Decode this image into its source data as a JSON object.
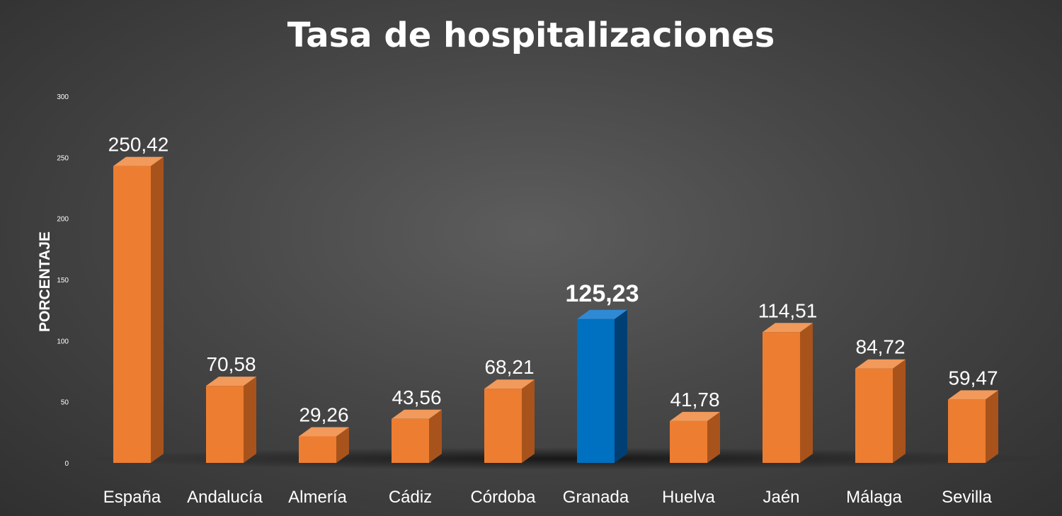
{
  "chart_data": {
    "type": "bar",
    "title": "Tasa de hospitalizaciones",
    "ylabel": "PORCENTAJE",
    "xlabel": "",
    "ylim": [
      0,
      300
    ],
    "yticks": [
      "0",
      "50",
      "100",
      "150",
      "200",
      "250",
      "300"
    ],
    "categories": [
      "España",
      "Andalucía",
      "Almería",
      "Cádiz",
      "Córdoba",
      "Granada",
      "Huelva",
      "Jaén",
      "Málaga",
      "Sevilla"
    ],
    "values": [
      250.42,
      70.58,
      29.26,
      43.56,
      68.21,
      125.23,
      41.78,
      114.51,
      84.72,
      59.47
    ],
    "data_labels": [
      "250,42",
      "70,58",
      "29,26",
      "43,56",
      "68,21",
      "125,23",
      "41,78",
      "114,51",
      "84,72",
      "59,47"
    ],
    "highlight_index": 5,
    "colors": {
      "bar": "#ed7d31",
      "bar_side": "#a8531c",
      "bar_top": "#f19a5b",
      "highlight": "#0070c0",
      "highlight_side": "#003f73",
      "highlight_top": "#2f8ad6"
    },
    "grid": false,
    "legend": "none"
  }
}
